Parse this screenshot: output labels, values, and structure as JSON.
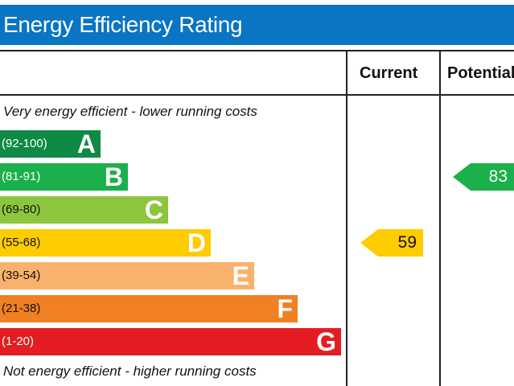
{
  "title": "Energy Efficiency Rating",
  "columns": {
    "current": "Current",
    "potential": "Potential"
  },
  "notes": {
    "top": "Very energy efficient - lower running costs",
    "bottom": "Not energy efficient - higher running costs"
  },
  "colors": {
    "title_bg": "#0a75c2",
    "A": "#0f8a44",
    "B": "#1bb04b",
    "C": "#8cc63f",
    "D": "#ffcc00",
    "E": "#f9b26b",
    "F": "#f08021",
    "G": "#e31d23"
  },
  "chart_data": {
    "type": "bar",
    "title": "Energy Efficiency Rating",
    "bands": [
      {
        "letter": "A",
        "range": "(92-100)"
      },
      {
        "letter": "B",
        "range": "(81-91)"
      },
      {
        "letter": "C",
        "range": "(69-80)"
      },
      {
        "letter": "D",
        "range": "(55-68)"
      },
      {
        "letter": "E",
        "range": "(39-54)"
      },
      {
        "letter": "F",
        "range": "(21-38)"
      },
      {
        "letter": "G",
        "range": "(1-20)"
      }
    ],
    "current": {
      "value": 59,
      "band": "D",
      "color": "#ffcc00"
    },
    "potential": {
      "value": 83,
      "band": "B",
      "color": "#1bb04b"
    }
  }
}
